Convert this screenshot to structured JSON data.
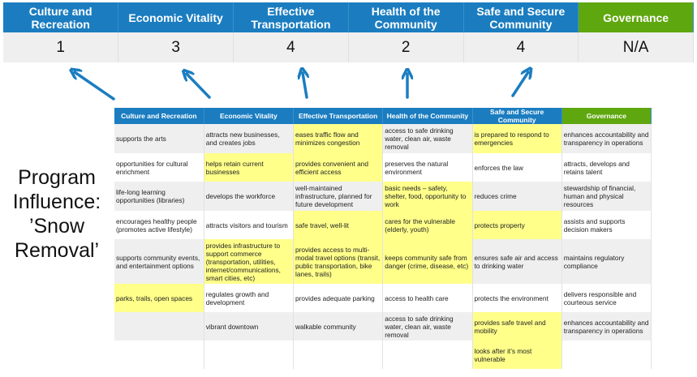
{
  "summary": {
    "columns": [
      "Culture and Recreation",
      "Economic Vitality",
      "Effective Transportation",
      "Health of the Community",
      "Safe and Secure Community",
      "Governance"
    ],
    "scores": [
      "1",
      "3",
      "4",
      "2",
      "4",
      "N/A"
    ]
  },
  "program_label": "Program Influence: ’Snow Removal’",
  "colors": {
    "header_blue": "#1b7dc0",
    "governance_green": "#5fa70f",
    "highlight": "#ffff8a",
    "arrow": "#1b7dc0"
  },
  "matrix": {
    "headers": [
      "Culture and Recreation",
      "Economic Vitality",
      "Effective Transportation",
      "Health of the Community",
      "Safe and Secure Community",
      "Governance"
    ],
    "rows": [
      [
        {
          "t": "supports the arts"
        },
        {
          "t": "attracts new businesses, and creates jobs"
        },
        {
          "t": "eases traffic flow and minimizes congestion",
          "h": true
        },
        {
          "t": "access to safe drinking water, clean air, waste removal"
        },
        {
          "t": "is prepared to respond to emergencies",
          "h": true
        },
        {
          "t": "enhances accountability and transparency in operations"
        }
      ],
      [
        {
          "t": "opportunities for cultural enrichment"
        },
        {
          "t": "helps retain current businesses",
          "h": true
        },
        {
          "t": "provides convenient and efficient access",
          "h": true
        },
        {
          "t": "preserves the natural environment"
        },
        {
          "t": "enforces the law"
        },
        {
          "t": "attracts, develops and retains talent"
        }
      ],
      [
        {
          "t": "life-long learning opportunities (libraries)"
        },
        {
          "t": "develops the workforce"
        },
        {
          "t": "well-maintained infrastructure, planned for future development"
        },
        {
          "t": "basic needs – safety, shelter, food, opportunity to work",
          "h": true
        },
        {
          "t": "reduces crime"
        },
        {
          "t": "stewardship of financial, human and physical resources"
        }
      ],
      [
        {
          "t": "encourages healthy people (promotes active lifestyle)"
        },
        {
          "t": "attracts visitors and tourism"
        },
        {
          "t": "safe travel, well-lit",
          "h": true
        },
        {
          "t": "cares for the vulnerable (elderly, youth)",
          "h": true
        },
        {
          "t": "protects property",
          "h": true
        },
        {
          "t": "assists and supports decision makers"
        }
      ],
      [
        {
          "t": "supports community events, and entertainment options"
        },
        {
          "t": "provides infrastructure to support commerce (transportation, utilities, internet/communications, smart cities, etc)",
          "h": true
        },
        {
          "t": "provides access to multi-modal travel options (transit, public transportation, bike lanes, trails)",
          "h": true
        },
        {
          "t": "keeps community safe from danger (crime, disease, etc)",
          "h": true
        },
        {
          "t": "ensures safe air and access to drinking water"
        },
        {
          "t": "maintains regulatory compliance"
        }
      ],
      [
        {
          "t": "parks, trails, open spaces",
          "h": true
        },
        {
          "t": "regulates growth and development"
        },
        {
          "t": "provides adequate parking"
        },
        {
          "t": "access to health care"
        },
        {
          "t": "protects the environment"
        },
        {
          "t": "delivers responsible and courteous service"
        }
      ],
      [
        {
          "t": ""
        },
        {
          "t": "vibrant downtown"
        },
        {
          "t": "walkable community"
        },
        {
          "t": "access to safe drinking water, clean air, waste removal"
        },
        {
          "t": "provides safe travel and mobility",
          "h": true
        },
        {
          "t": "enhances accountability and transparency in operations"
        }
      ],
      [
        {
          "t": ""
        },
        {
          "t": ""
        },
        {
          "t": ""
        },
        {
          "t": ""
        },
        {
          "t": "looks after it’s most vulnerable",
          "h": true
        },
        {
          "t": ""
        }
      ]
    ]
  }
}
